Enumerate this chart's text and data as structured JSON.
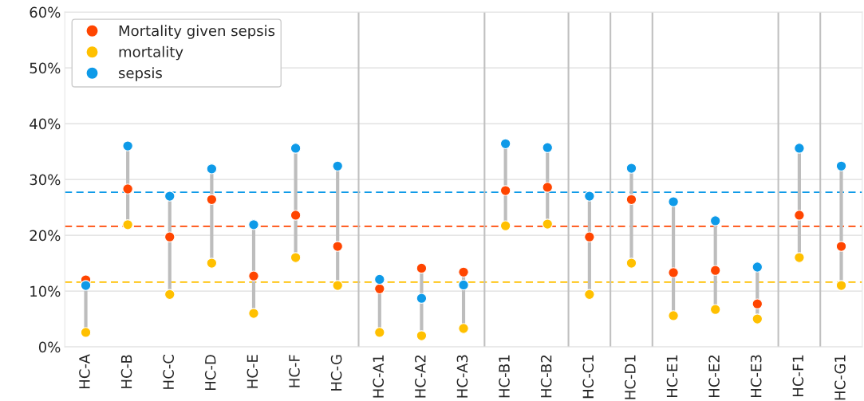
{
  "chart_data": {
    "type": "scatter",
    "categories": [
      "HC-A",
      "HC-B",
      "HC-C",
      "HC-D",
      "HC-E",
      "HC-F",
      "HC-G",
      "HC-A1",
      "HC-A2",
      "HC-A3",
      "HC-B1",
      "HC-B2",
      "HC-C1",
      "HC-D1",
      "HC-E1",
      "HC-E2",
      "HC-E3",
      "HC-F1",
      "HC-G1"
    ],
    "ylim": [
      0,
      60
    ],
    "yticks": [
      {
        "value": 0,
        "label": "0%"
      },
      {
        "value": 10,
        "label": "10%"
      },
      {
        "value": 20,
        "label": "20%"
      },
      {
        "value": 30,
        "label": "30%"
      },
      {
        "value": 40,
        "label": "40%"
      },
      {
        "value": 50,
        "label": "50%"
      },
      {
        "value": 60,
        "label": "60%"
      }
    ],
    "series": [
      {
        "name": "Mortality given sepsis",
        "color": "#ff4500",
        "values": [
          12.0,
          28.3,
          19.7,
          26.4,
          12.7,
          23.6,
          18.0,
          10.4,
          14.1,
          13.4,
          28.0,
          28.6,
          19.7,
          26.4,
          13.3,
          13.7,
          7.7,
          23.6,
          18.0
        ]
      },
      {
        "name": "mortality",
        "color": "#ffc000",
        "values": [
          2.6,
          21.9,
          9.4,
          15.0,
          6.0,
          16.0,
          11.0,
          2.6,
          2.0,
          3.3,
          21.7,
          22.0,
          9.4,
          15.0,
          5.6,
          6.7,
          5.0,
          16.0,
          11.0
        ]
      },
      {
        "name": "sepsis",
        "color": "#0e9ae8",
        "values": [
          11.0,
          36.0,
          27.0,
          31.9,
          21.9,
          35.6,
          32.4,
          12.1,
          8.7,
          11.1,
          36.4,
          35.7,
          27.0,
          32.0,
          26.0,
          22.6,
          14.3,
          35.6,
          32.4
        ]
      }
    ],
    "ref_lines": [
      {
        "axis": "y",
        "value": 27.7,
        "color": "#0e9ae8",
        "line_style": "dashed"
      },
      {
        "axis": "y",
        "value": 21.6,
        "color": "#ff4500",
        "line_style": "dashed"
      },
      {
        "axis": "y",
        "value": 11.6,
        "color": "#ffc000",
        "line_style": "dashed"
      }
    ],
    "grid": "y",
    "legend": "top left",
    "marker": "circle"
  }
}
